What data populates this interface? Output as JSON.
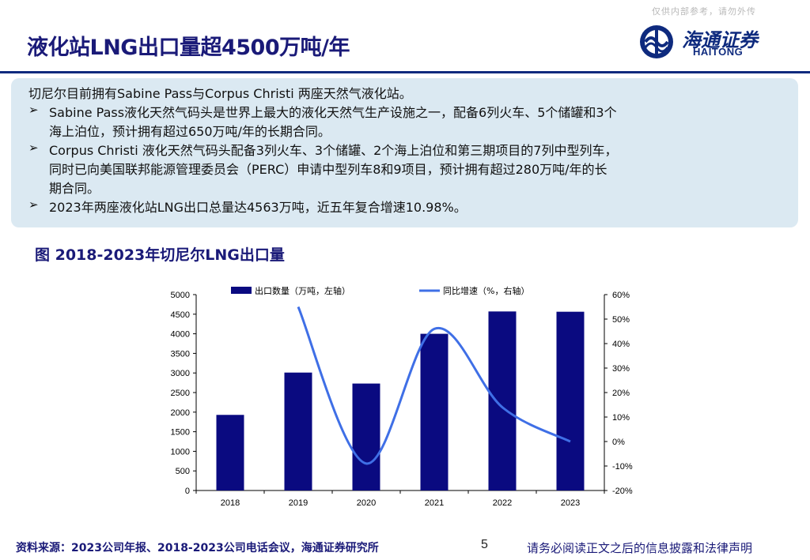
{
  "header": {
    "watermark": "仅供内部参考，请勿外传",
    "title": "液化站LNG出口量超4500万吨/年",
    "logo_cn": "海通证券",
    "logo_en": "HAITONG"
  },
  "summary": {
    "intro": "切尼尔目前拥有Sabine Pass与Corpus Christi 两座天然气液化站。",
    "bullet_symbol": "➢",
    "bullets": [
      {
        "line1": "Sabine Pass液化天然气码头是世界上最大的液化天然气生产设施之一，配备6列火车、5个储罐和3个",
        "line2": "海上泊位，预计拥有超过650万吨/年的长期合同。"
      },
      {
        "line1": "Corpus Christi 液化天然气码头配备3列火车、3个储罐、2个海上泊位和第三期项目的7列中型列车，",
        "line2": "同时已向美国联邦能源管理委员会（PERC）申请中型列车8和9项目，预计拥有超过280万吨/年的长",
        "line3": "期合同。"
      },
      {
        "line1": "2023年两座液化站LNG出口总量达4563万吨，近五年复合增速10.98%。"
      }
    ]
  },
  "figure": {
    "title": "图 2018-2023年切尼尔LNG出口量"
  },
  "chart_data": {
    "type": "bar",
    "categories": [
      "2018",
      "2019",
      "2020",
      "2021",
      "2022",
      "2023"
    ],
    "series": [
      {
        "name": "出口数量（万吨，左轴）",
        "type": "bar",
        "axis": "left",
        "color": "#0a0a80",
        "values": [
          1930,
          3010,
          2730,
          4000,
          4570,
          4563
        ]
      },
      {
        "name": "同比增速（%，右轴）",
        "type": "line",
        "axis": "right",
        "color": "#3f6fe6",
        "values": [
          null,
          55,
          -9,
          46,
          14,
          0
        ]
      }
    ],
    "y_left": {
      "min": 0,
      "max": 5000,
      "ticks": [
        0,
        500,
        1000,
        1500,
        2000,
        2500,
        3000,
        3500,
        4000,
        4500,
        5000
      ]
    },
    "y_right": {
      "min": -20,
      "max": 60,
      "ticks": [
        "-20%",
        "-10%",
        "0%",
        "10%",
        "20%",
        "30%",
        "40%",
        "50%",
        "60%"
      ]
    },
    "legend_position": "top",
    "grid": false
  },
  "footer": {
    "source": "资料来源：2023公司年报、2018-2023公司电话会议，海通证券研究所",
    "page": "5",
    "disclaimer": "请务必阅读正文之后的信息披露和法律声明"
  }
}
